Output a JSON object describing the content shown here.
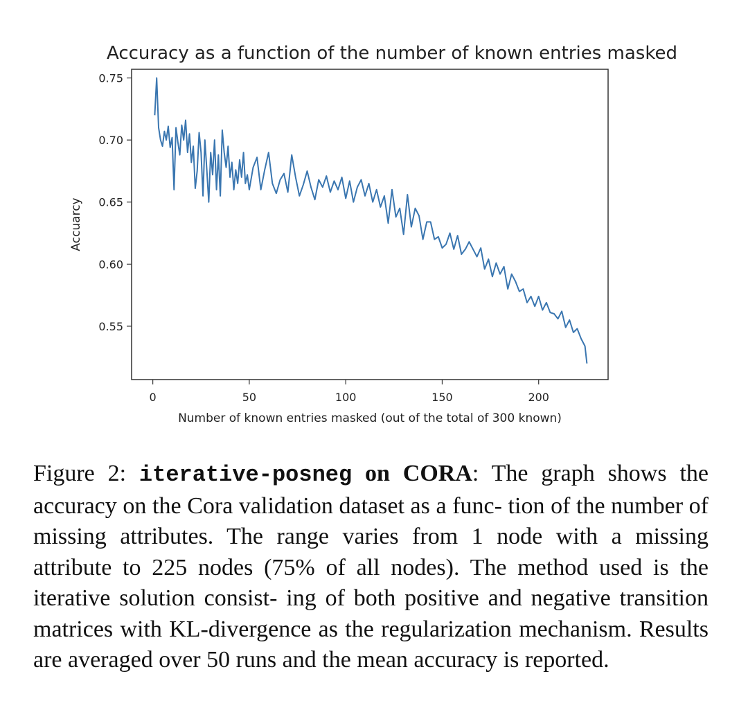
{
  "chart_data": {
    "type": "line",
    "title": "Accuracy as a function of the number of known entries masked",
    "xlabel": "Number of known entries masked (out of the total of 300 known)",
    "ylabel": "Accuarcy",
    "xlim": [
      -11,
      236
    ],
    "ylim": [
      0.507,
      0.757
    ],
    "xticks": [
      0,
      50,
      100,
      150,
      200
    ],
    "xtick_labels": [
      "0",
      "50",
      "100",
      "150",
      "200"
    ],
    "yticks": [
      0.55,
      0.6,
      0.65,
      0.7,
      0.75
    ],
    "ytick_labels": [
      "0.55",
      "0.60",
      "0.65",
      "0.70",
      "0.75"
    ],
    "grid": false,
    "series": [
      {
        "color": "#3a76b0",
        "x": [
          1,
          2,
          3,
          4,
          5,
          6,
          7,
          8,
          9,
          10,
          11,
          12,
          13,
          14,
          15,
          16,
          17,
          18,
          19,
          20,
          21,
          22,
          23,
          24,
          25,
          26,
          27,
          28,
          29,
          30,
          31,
          32,
          33,
          34,
          35,
          36,
          37,
          38,
          39,
          40,
          41,
          42,
          43,
          44,
          45,
          46,
          47,
          48,
          49,
          50,
          52,
          54,
          56,
          58,
          60,
          62,
          64,
          66,
          68,
          70,
          72,
          74,
          76,
          78,
          80,
          82,
          84,
          86,
          88,
          90,
          92,
          94,
          96,
          98,
          100,
          102,
          104,
          106,
          108,
          110,
          112,
          114,
          116,
          118,
          120,
          122,
          124,
          126,
          128,
          130,
          132,
          134,
          136,
          138,
          140,
          142,
          144,
          146,
          148,
          150,
          152,
          154,
          156,
          158,
          160,
          162,
          164,
          166,
          168,
          170,
          172,
          174,
          176,
          178,
          180,
          182,
          184,
          186,
          188,
          190,
          192,
          194,
          196,
          198,
          200,
          202,
          204,
          206,
          208,
          210,
          212,
          214,
          216,
          218,
          220,
          222,
          224,
          225
        ],
        "y": [
          0.72,
          0.75,
          0.71,
          0.7,
          0.695,
          0.707,
          0.7,
          0.711,
          0.694,
          0.702,
          0.66,
          0.71,
          0.698,
          0.688,
          0.712,
          0.7,
          0.716,
          0.69,
          0.705,
          0.682,
          0.695,
          0.661,
          0.675,
          0.706,
          0.69,
          0.655,
          0.7,
          0.676,
          0.65,
          0.69,
          0.672,
          0.7,
          0.66,
          0.688,
          0.655,
          0.708,
          0.69,
          0.678,
          0.695,
          0.67,
          0.682,
          0.66,
          0.676,
          0.665,
          0.684,
          0.67,
          0.69,
          0.665,
          0.672,
          0.66,
          0.678,
          0.686,
          0.66,
          0.676,
          0.69,
          0.665,
          0.657,
          0.668,
          0.673,
          0.658,
          0.688,
          0.67,
          0.655,
          0.664,
          0.675,
          0.662,
          0.652,
          0.668,
          0.662,
          0.671,
          0.658,
          0.667,
          0.66,
          0.67,
          0.653,
          0.667,
          0.65,
          0.662,
          0.668,
          0.655,
          0.665,
          0.65,
          0.66,
          0.646,
          0.655,
          0.633,
          0.66,
          0.638,
          0.645,
          0.624,
          0.656,
          0.63,
          0.645,
          0.639,
          0.62,
          0.634,
          0.634,
          0.62,
          0.622,
          0.613,
          0.616,
          0.625,
          0.612,
          0.623,
          0.608,
          0.612,
          0.618,
          0.612,
          0.606,
          0.613,
          0.596,
          0.604,
          0.59,
          0.601,
          0.592,
          0.598,
          0.58,
          0.592,
          0.586,
          0.578,
          0.58,
          0.569,
          0.574,
          0.566,
          0.574,
          0.563,
          0.569,
          0.561,
          0.56,
          0.556,
          0.562,
          0.549,
          0.555,
          0.545,
          0.548,
          0.54,
          0.534,
          0.52
        ]
      }
    ]
  },
  "caption": {
    "prefix": "Figure 2: ",
    "method": "iterative-posneg",
    "dataset": " on CORA",
    "text": ": The graph shows the accuracy on the Cora validation dataset as a func- tion of the number of missing attributes. The range varies from 1 node with a missing attribute to 225 nodes (75% of all nodes). The method used is the iterative solution consist- ing of both positive and negative transition matrices with KL-divergence as the regularization mechanism. Results are averaged over 50 runs and the mean accuracy is reported."
  }
}
